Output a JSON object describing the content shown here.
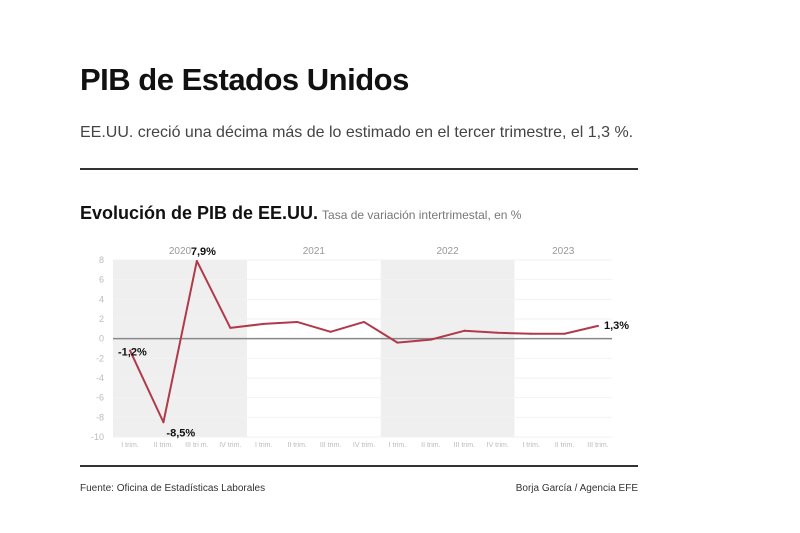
{
  "header": {
    "title": "PIB de Estados Unidos",
    "subtitle": "EE.UU. creció una décima más de lo estimado en el tercer trimestre, el 1,3 %."
  },
  "footer": {
    "source": "Fuente: Oficina de Estadísticas Laborales",
    "credit": "Borja García / Agencia EFE"
  },
  "chart_data": {
    "type": "line",
    "title": "Evolución de PIB de EE.UU.",
    "subtitle": "Tasa de variación intertrimestal, en %",
    "years": [
      {
        "label": "2020",
        "start": 0,
        "end": 3,
        "shaded": true
      },
      {
        "label": "2021",
        "start": 4,
        "end": 7,
        "shaded": false
      },
      {
        "label": "2022",
        "start": 8,
        "end": 11,
        "shaded": true
      },
      {
        "label": "2023",
        "start": 12,
        "end": 14,
        "shaded": false
      }
    ],
    "categories": [
      "I trim.",
      "II trim.",
      "III tri m.",
      "IV trim.",
      "I trim.",
      "II trim.",
      "III trim.",
      "IV trim.",
      "I trim.",
      "II trim.",
      "III trim.",
      "IV trim.",
      "I trim.",
      "II trim.",
      "III trim."
    ],
    "values": [
      -1.2,
      -8.5,
      7.9,
      1.1,
      1.5,
      1.7,
      0.7,
      1.7,
      -0.4,
      -0.1,
      0.8,
      0.6,
      0.5,
      0.5,
      1.3
    ],
    "data_labels": [
      {
        "index": 0,
        "text": "-1,2%"
      },
      {
        "index": 1,
        "text": "-8,5%"
      },
      {
        "index": 2,
        "text": "7,9%"
      },
      {
        "index": 14,
        "text": "1,3%"
      }
    ],
    "yticks": [
      8,
      6,
      4,
      2,
      0,
      -2,
      -4,
      -6,
      -8,
      -10
    ],
    "ylim": [
      -10,
      8
    ],
    "grid": true,
    "colors": {
      "line": "#b03a4a",
      "shade": "#efefef",
      "zero": "#888888",
      "ticks": "#bbbbbb"
    }
  }
}
